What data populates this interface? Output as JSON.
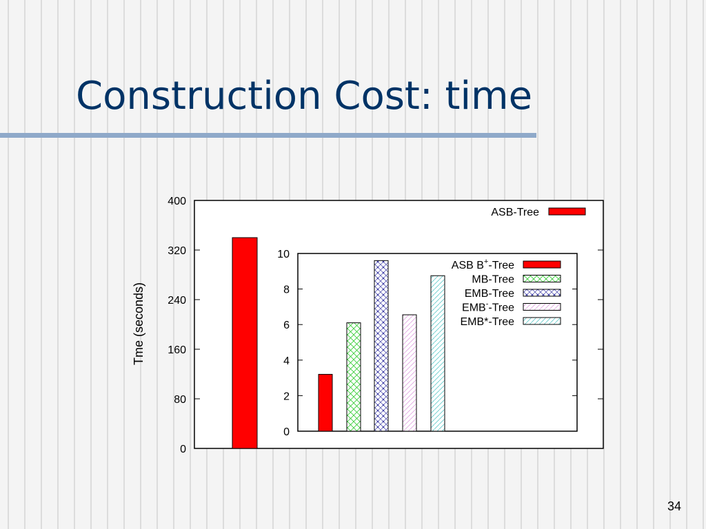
{
  "slide": {
    "title": "Construction Cost: time",
    "page_number": "34"
  },
  "colors": {
    "title": "#003366",
    "rule": "#8fa9c9",
    "red": "#ff0000"
  },
  "chart_data": [
    {
      "type": "bar",
      "ylabel": "Tme (seconds)",
      "ylim": [
        0,
        400
      ],
      "yticks": [
        "0",
        "80",
        "160",
        "240",
        "320",
        "400"
      ],
      "series": [
        {
          "name": "ASB-Tree",
          "values": [
            340
          ],
          "pattern": "solid-red"
        }
      ],
      "legend": "top-right",
      "grid": false
    },
    {
      "type": "bar",
      "inset": true,
      "ylim": [
        0,
        10
      ],
      "yticks": [
        "0",
        "2",
        "4",
        "6",
        "8",
        "10"
      ],
      "series": [
        {
          "name": "ASB B",
          "name_sup": "+",
          "name_suffix": "-Tree",
          "values": [
            3.2
          ],
          "pattern": "solid-red"
        },
        {
          "name": "MB-Tree",
          "values": [
            6.1
          ],
          "pattern": "green-cross"
        },
        {
          "name": "EMB-Tree",
          "values": [
            9.6
          ],
          "pattern": "blue-dots"
        },
        {
          "name": "EMB",
          "name_sup": "-",
          "name_suffix": "-Tree",
          "values": [
            6.55
          ],
          "pattern": "pink-diag"
        },
        {
          "name": "EMB*-Tree",
          "values": [
            8.75
          ],
          "pattern": "cyan-diag"
        }
      ],
      "legend": "top-right",
      "grid": false
    }
  ]
}
